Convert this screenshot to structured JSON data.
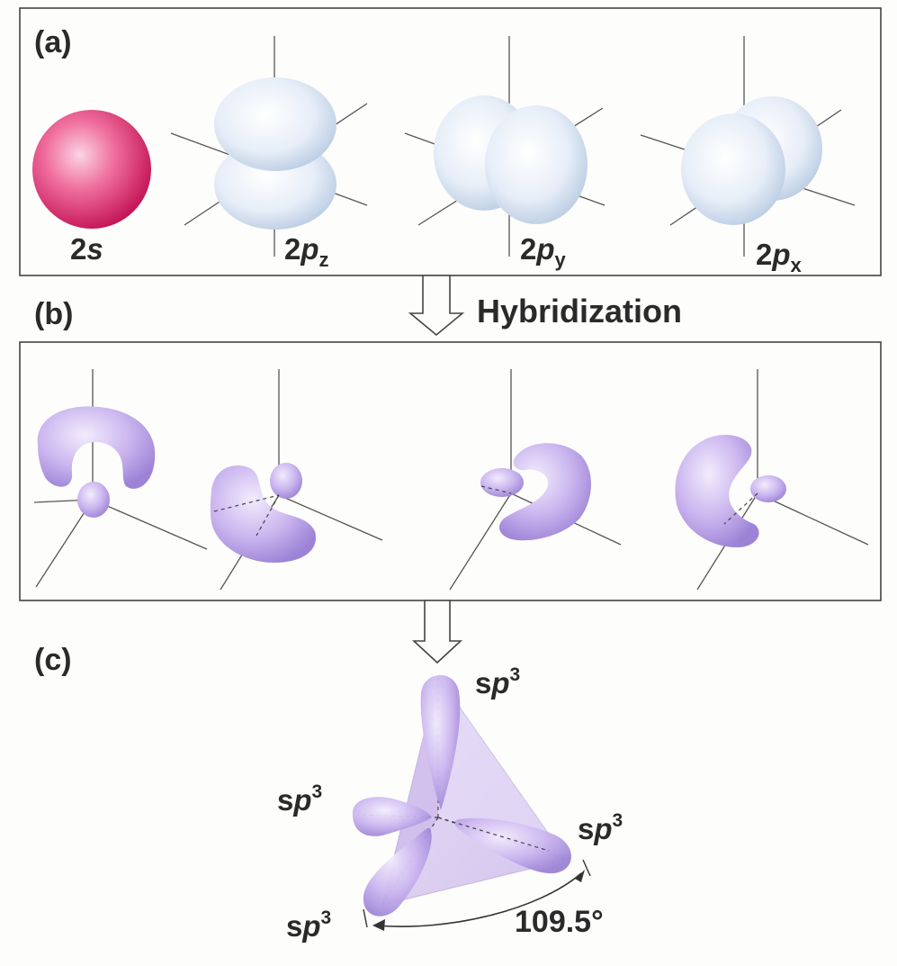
{
  "panels": {
    "a_label": "(a)",
    "b_label": "(b)",
    "c_label": "(c)"
  },
  "orbitals": {
    "s": {
      "num": "2",
      "letter": "s"
    },
    "pz": {
      "num": "2",
      "letter": "p",
      "sub": "z"
    },
    "py": {
      "num": "2",
      "letter": "p",
      "sub": "y"
    },
    "px": {
      "num": "2",
      "letter": "p",
      "sub": "x"
    }
  },
  "hybridization_label": "Hybridization",
  "sp3": {
    "text": "s",
    "letter": "p",
    "sup": "3"
  },
  "angle_label": "109.5°",
  "colors": {
    "s_orbital": "#e0356e",
    "p_orbital": "#dde8f5",
    "hybrid_orbital": "#c9b4ec",
    "tetrahedron": "#cdb8ec"
  }
}
